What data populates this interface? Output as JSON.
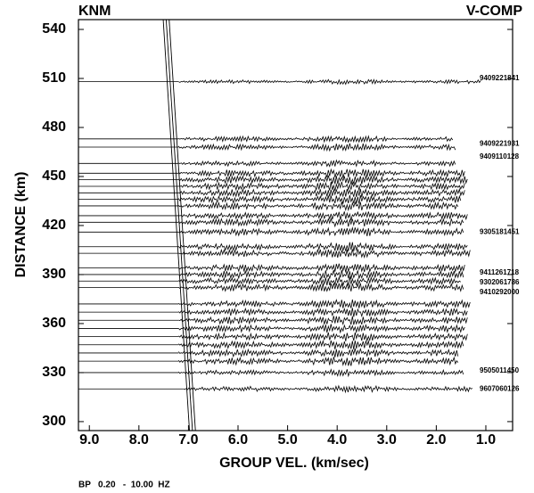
{
  "chart_data": {
    "type": "record-section",
    "station": "KNM",
    "component": "V-COMP",
    "x_label": "GROUP VEL. (km/sec)",
    "y_label": "DISTANCE (km)",
    "filter_note": "BP   0.20   -  10.00  HZ",
    "xlim": [
      9.22,
      0.46
    ],
    "ylim": [
      294.5,
      546
    ],
    "xticks": [
      {
        "value": 9,
        "label": "9.0"
      },
      {
        "value": 8,
        "label": "8.0"
      },
      {
        "value": 7,
        "label": "7.0"
      },
      {
        "value": 6,
        "label": "6.0"
      },
      {
        "value": 5,
        "label": "5.0"
      },
      {
        "value": 4,
        "label": "4.0"
      },
      {
        "value": 3,
        "label": "3.0"
      },
      {
        "value": 2,
        "label": "2.0"
      },
      {
        "value": 1,
        "label": "1.0"
      }
    ],
    "yticks": [
      300,
      330,
      360,
      390,
      420,
      450,
      480,
      510,
      540
    ],
    "reference_lines": [
      {
        "x": [
          7.51,
          6.98
        ],
        "y": [
          546,
          294.5
        ]
      },
      {
        "x": [
          7.45,
          6.92
        ],
        "y": [
          546,
          294.5
        ]
      },
      {
        "x": [
          7.39,
          6.86
        ],
        "y": [
          546,
          294.5
        ]
      }
    ],
    "color": "#000000",
    "traces": {
      "distances": [
        508,
        473,
        468,
        458,
        452,
        448,
        444,
        440,
        436,
        432,
        426,
        422,
        416,
        407,
        403,
        394,
        390,
        386,
        382,
        372,
        367,
        362,
        357,
        352,
        347,
        342,
        337,
        330,
        320
      ],
      "onsets": [
        7.2,
        7.2,
        7.2,
        7.2,
        7.2,
        7.2,
        7.2,
        7.2,
        7.2,
        7.2,
        7.2,
        7.2,
        7.2,
        7.2,
        7.2,
        7.2,
        7.2,
        7.2,
        7.2,
        7.2,
        7.2,
        7.2,
        7.2,
        7.2,
        7.2,
        7.2,
        7.2,
        7.2,
        7.1
      ],
      "ends": [
        1.1,
        1.65,
        1.6,
        1.6,
        1.4,
        1.35,
        1.4,
        1.4,
        1.5,
        1.55,
        1.35,
        1.45,
        1.45,
        1.35,
        1.3,
        1.4,
        1.45,
        1.5,
        1.45,
        1.3,
        1.35,
        1.35,
        1.4,
        1.35,
        1.45,
        1.55,
        1.55,
        1.45,
        1.25
      ],
      "amplitudes": [
        1.2,
        1.6,
        1.8,
        1.6,
        2.2,
        2.2,
        2.2,
        2.2,
        2.2,
        2.2,
        2.2,
        2.2,
        2.2,
        2.2,
        2.2,
        2.2,
        2.2,
        2.2,
        2.2,
        2.2,
        2.2,
        2.2,
        2.2,
        2.2,
        2.2,
        2.2,
        2.2,
        1.6,
        1.6
      ]
    },
    "event_labels": {
      "distances": [
        510,
        470,
        462,
        416,
        391,
        385,
        379,
        331,
        320
      ],
      "labels": [
        "9409221841",
        "9409221931",
        "9409110128",
        "9305181451",
        "9411261718",
        "9302061786",
        "9410292000",
        "9505011450",
        "9607060126"
      ]
    }
  }
}
